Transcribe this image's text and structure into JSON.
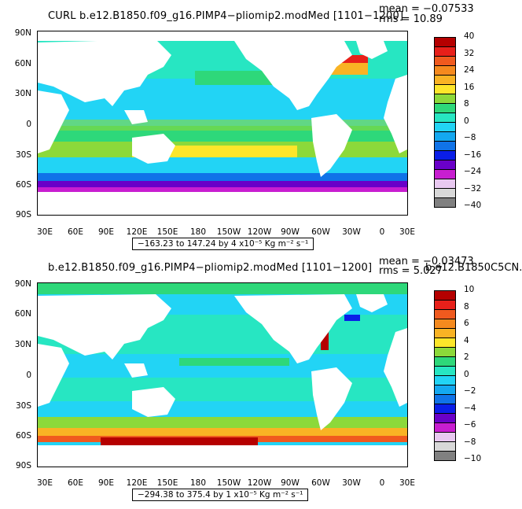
{
  "panels": [
    {
      "title": "CURL b.e12.B1850.f09_g16.PIMP4−pliomip2.modMed [1101−1200]",
      "mean": "mean = −0.07533",
      "rms": "rms = 10.89",
      "range_text": "−163.23 to 147.24 by 4 x10⁻⁵ Kg m⁻² s⁻¹",
      "colorbar": {
        "labels": [
          "40",
          "32",
          "24",
          "16",
          "8",
          "0",
          "−8",
          "−16",
          "−24",
          "−32",
          "−40"
        ],
        "colors": [
          "#b50000",
          "#e8201a",
          "#f05a1e",
          "#f58a1e",
          "#f9b324",
          "#fde62a",
          "#8cd93a",
          "#2ed87a",
          "#27e6c2",
          "#22d4f5",
          "#14a8f0",
          "#1073e8",
          "#0a1ee8",
          "#6a00c8",
          "#c81ed0",
          "#e8c8f0",
          "#d8d8d8",
          "#808080"
        ]
      },
      "color_scale": "positive_strong"
    },
    {
      "title": "b.e12.B1850.f09_g16.PIMP4−pliomip2.modMed [1101−1200]",
      "mean": "mean = −0.03473",
      "rms": "rms = 5.027",
      "overlap_text": "b.e12.B1850C5CN.",
      "range_text": "−294.38 to 375.4 by 1 x10⁻⁵ Kg m⁻² s⁻¹",
      "colorbar": {
        "labels": [
          "10",
          "8",
          "6",
          "4",
          "2",
          "0",
          "−2",
          "−4",
          "−6",
          "−8",
          "−10"
        ],
        "colors": [
          "#b50000",
          "#e8201a",
          "#f05a1e",
          "#f58a1e",
          "#f9b324",
          "#fde62a",
          "#8cd93a",
          "#2ed87a",
          "#27e6c2",
          "#22d4f5",
          "#14a8f0",
          "#1073e8",
          "#0a1ee8",
          "#6a00c8",
          "#c81ed0",
          "#e8c8f0",
          "#d8d8d8",
          "#808080"
        ]
      },
      "color_scale": "southern_red"
    }
  ],
  "lat_labels": [
    "90N",
    "60N",
    "30N",
    "0",
    "30S",
    "60S",
    "90S"
  ],
  "lon_labels": [
    "30E",
    "60E",
    "90E",
    "120E",
    "150E",
    "180",
    "150W",
    "120W",
    "90W",
    "60W",
    "30W",
    "0",
    "30E"
  ]
}
